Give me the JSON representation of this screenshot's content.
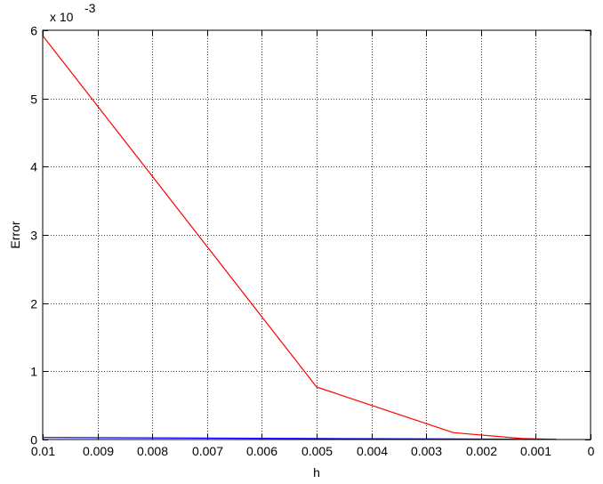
{
  "chart_data": {
    "type": "line",
    "title": "",
    "xlabel": "h",
    "ylabel": "Error",
    "x_reversed": true,
    "xlim": [
      0.01,
      0
    ],
    "ylim": [
      0,
      0.006
    ],
    "y_exponent_label": "x 10",
    "y_exponent": "-3",
    "grid": true,
    "x_ticks": [
      0.01,
      0.009,
      0.008,
      0.007,
      0.006,
      0.005,
      0.004,
      0.003,
      0.002,
      0.001,
      0
    ],
    "x_tick_labels": [
      "0.01",
      "0.009",
      "0.008",
      "0.007",
      "0.006",
      "0.005",
      "0.004",
      "0.003",
      "0.002",
      "0.001",
      "0"
    ],
    "y_ticks": [
      0,
      0.001,
      0.002,
      0.003,
      0.004,
      0.005,
      0.006
    ],
    "y_tick_labels": [
      "0",
      "1",
      "2",
      "3",
      "4",
      "5",
      "6"
    ],
    "series": [
      {
        "color": "#ff0000",
        "x": [
          0.01,
          0.005,
          0.0025,
          0.00125,
          0.000625
        ],
        "y": [
          0.00592,
          0.00077,
          0.0001,
          1.5e-05,
          2e-06
        ]
      },
      {
        "color": "#0000ff",
        "x": [
          0.01,
          0.005,
          0.0025,
          0.00125,
          0.000625
        ],
        "y": [
          3e-05,
          1.5e-05,
          8e-06,
          4e-06,
          2e-06
        ]
      }
    ]
  }
}
